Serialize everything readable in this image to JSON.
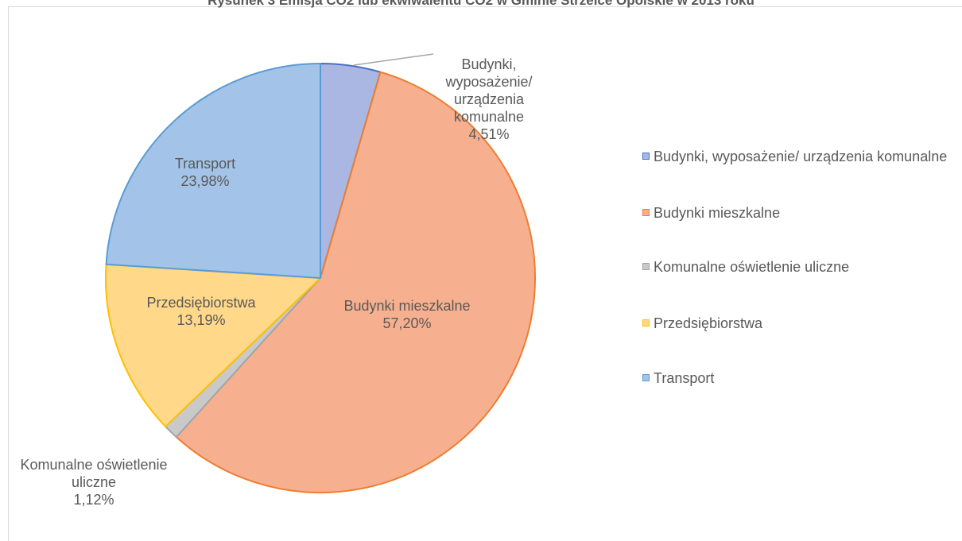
{
  "chart_data": {
    "type": "pie",
    "title": "Rysunek 3 Emisja CO2 lub ekwiwalentu CO2 w Gminie Strzelce Opolskie w 2013 roku",
    "categories": [
      "Budynki, wyposażenie/ urządzenia komunalne",
      "Budynki mieszkalne",
      "Komunalne oświetlenie uliczne",
      "Przedsiębiorstwa",
      "Transport"
    ],
    "values": [
      4.51,
      57.2,
      1.12,
      13.19,
      23.98
    ],
    "value_labels": [
      "4,51%",
      "57,20%",
      "1,12%",
      "13,19%",
      "23,98%"
    ],
    "colors": [
      "#a9b7e2",
      "#f6b08f",
      "#c9c9c9",
      "#ffd88a",
      "#a3c4e8"
    ],
    "legend": "right"
  }
}
